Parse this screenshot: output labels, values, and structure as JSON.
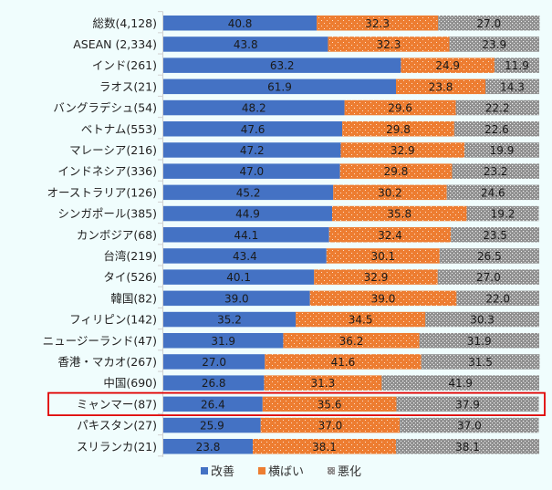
{
  "chart_data": {
    "type": "bar",
    "orientation": "horizontal",
    "stacked": "100%",
    "title": "",
    "xlabel": "",
    "ylabel": "",
    "xlim": [
      0,
      100
    ],
    "grid": false,
    "legend_position": "bottom",
    "categories": [
      "総数(4,128)",
      "ASEAN (2,334)",
      "インド(261)",
      "ラオス(21)",
      "バングラデシュ(54)",
      "ベトナム(553)",
      "マレーシア(216)",
      "インドネシア(336)",
      "オーストラリア(126)",
      "シンガポール(385)",
      "カンボジア(68)",
      "台湾(219)",
      "タイ(526)",
      "韓国(82)",
      "フィリピン(142)",
      "ニュージーランド(47)",
      "香港・マカオ(267)",
      "中国(690)",
      "ミャンマー(87)",
      "パキスタン(27)",
      "スリランカ(21)"
    ],
    "series": [
      {
        "name": "改善",
        "color": "#4472c4",
        "pattern": "solid",
        "values": [
          40.8,
          43.8,
          63.2,
          61.9,
          48.2,
          47.6,
          47.2,
          47.0,
          45.2,
          44.9,
          44.1,
          43.4,
          40.1,
          39.0,
          35.2,
          31.9,
          27.0,
          26.8,
          26.4,
          25.9,
          23.8
        ]
      },
      {
        "name": "横ばい",
        "color": "#ed7d31",
        "pattern": "sparse-dots",
        "values": [
          32.3,
          32.3,
          24.9,
          23.8,
          29.6,
          29.8,
          32.9,
          29.8,
          30.2,
          35.8,
          32.4,
          30.1,
          32.9,
          39.0,
          34.5,
          36.2,
          41.6,
          31.3,
          35.6,
          37.0,
          38.1
        ]
      },
      {
        "name": "悪化",
        "color": "#a5a5a5",
        "pattern": "dense-dots",
        "values": [
          27.0,
          23.9,
          11.9,
          14.3,
          22.2,
          22.6,
          19.9,
          23.2,
          24.6,
          19.2,
          23.5,
          26.5,
          27.0,
          22.0,
          30.3,
          31.9,
          31.5,
          41.9,
          37.9,
          37.0,
          38.1
        ]
      }
    ],
    "highlight": {
      "category": "ミャンマー(87)",
      "color": "#e00000"
    }
  }
}
